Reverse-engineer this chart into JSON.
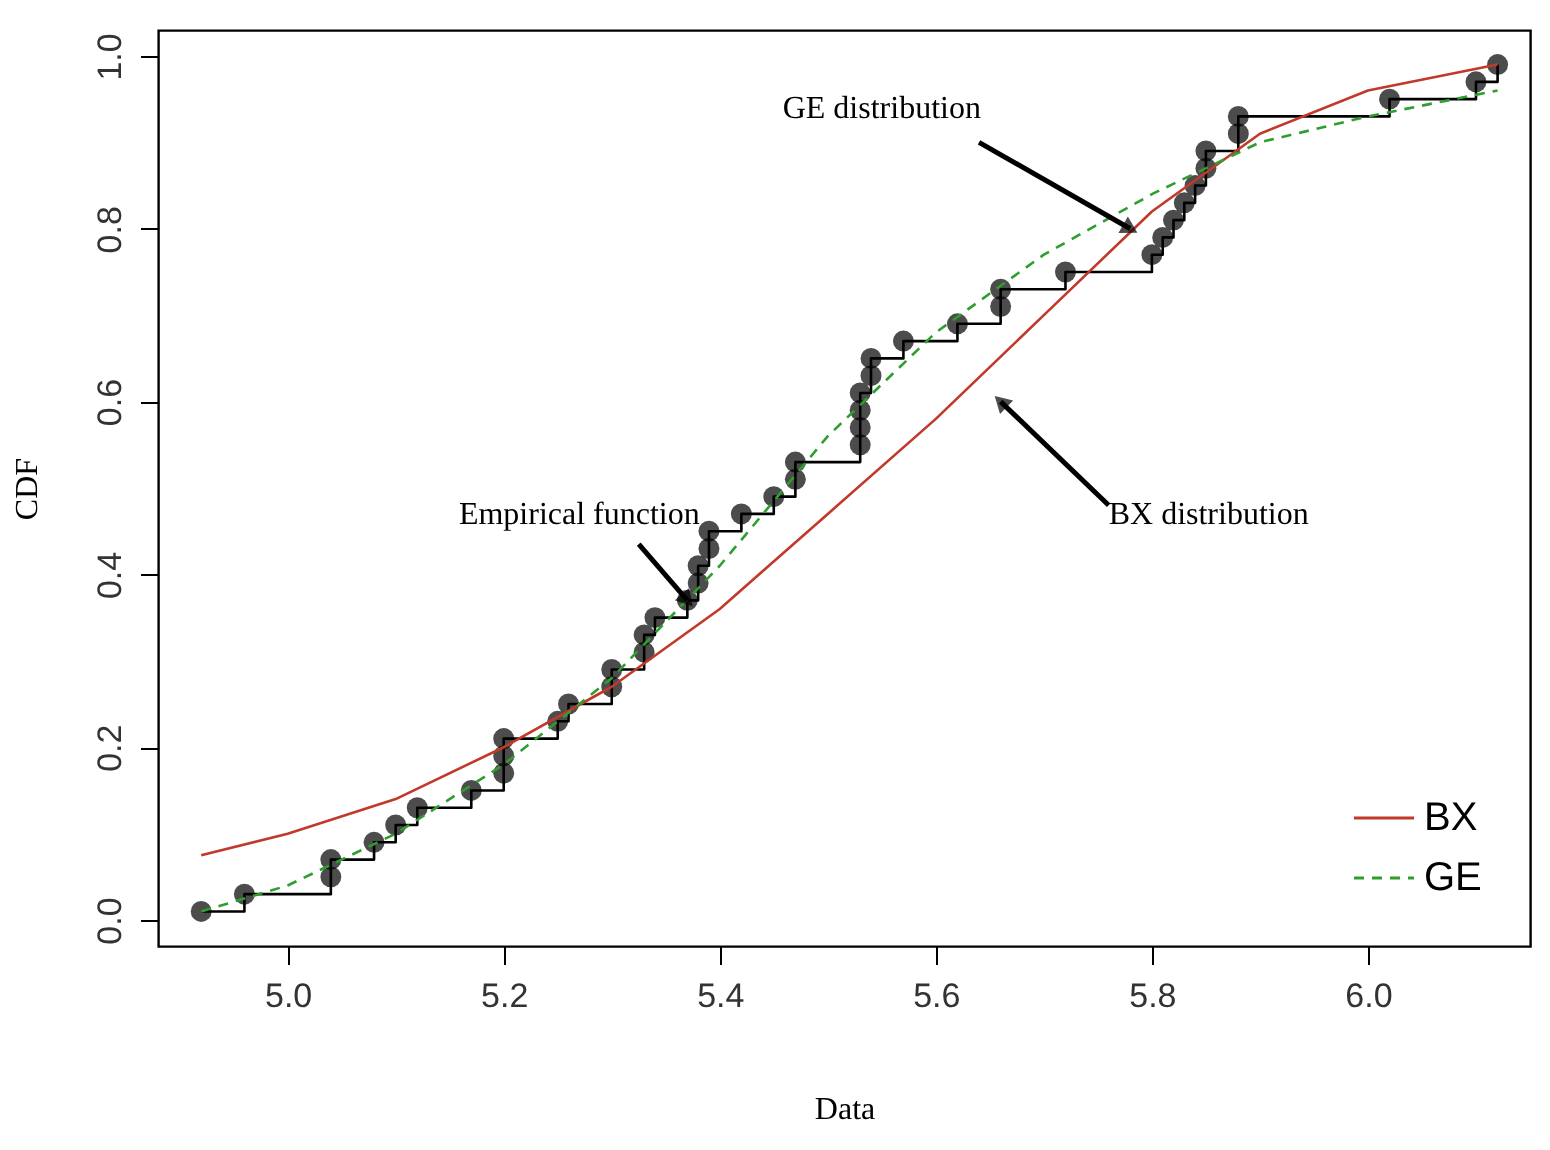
{
  "chart_data": {
    "type": "line",
    "xlabel": "Data",
    "ylabel": "CDF",
    "xlim": [
      4.88,
      6.15
    ],
    "ylim": [
      -0.03,
      1.03
    ],
    "xticks": [
      {
        "value": 5,
        "label": "5.0"
      },
      5.2,
      5.4,
      5.6,
      5.8,
      {
        "value": 6,
        "label": "6.0"
      }
    ],
    "yticks": [
      {
        "value": 0,
        "label": "0.0"
      },
      0.2,
      0.4,
      0.6,
      0.8,
      {
        "value": 1,
        "label": "1.0"
      }
    ],
    "grid": false,
    "legend": "bottom right",
    "series": [
      {
        "type": "step",
        "color": "#000000",
        "marker": "circle",
        "line_style": "solid",
        "x": [
          4.92,
          4.96,
          5.04,
          5.04,
          5.08,
          5.1,
          5.12,
          5.17,
          5.2,
          5.2,
          5.2,
          5.25,
          5.26,
          5.3,
          5.3,
          5.33,
          5.33,
          5.34,
          5.37,
          5.38,
          5.38,
          5.39,
          5.39,
          5.42,
          5.45,
          5.47,
          5.47,
          5.53,
          5.53,
          5.53,
          5.53,
          5.54,
          5.54,
          5.57,
          5.62,
          5.66,
          5.66,
          5.72,
          5.8,
          5.81,
          5.82,
          5.83,
          5.84,
          5.85,
          5.85,
          5.88,
          5.88,
          6.02,
          6.1,
          6.12
        ],
        "values": [
          0.01,
          0.03,
          0.05,
          0.07,
          0.09,
          0.11,
          0.13,
          0.15,
          0.17,
          0.19,
          0.21,
          0.23,
          0.25,
          0.27,
          0.29,
          0.31,
          0.33,
          0.35,
          0.37,
          0.39,
          0.41,
          0.43,
          0.45,
          0.47,
          0.49,
          0.51,
          0.53,
          0.55,
          0.57,
          0.59,
          0.61,
          0.63,
          0.65,
          0.67,
          0.69,
          0.71,
          0.73,
          0.75,
          0.77,
          0.79,
          0.81,
          0.83,
          0.85,
          0.87,
          0.89,
          0.91,
          0.93,
          0.95,
          0.97,
          0.99
        ]
      },
      {
        "name": "BX",
        "color": "#c0392b",
        "line_style": "solid",
        "marker": "none",
        "x": [
          4.92,
          5.0,
          5.1,
          5.2,
          5.3,
          5.4,
          5.5,
          5.6,
          5.7,
          5.8,
          5.9,
          6.0,
          6.12
        ],
        "values": [
          0.075,
          0.1,
          0.14,
          0.2,
          0.27,
          0.36,
          0.47,
          0.58,
          0.7,
          0.82,
          0.91,
          0.96,
          0.99
        ]
      },
      {
        "name": "GE",
        "color": "#2e9e2e",
        "line_style": "dashed",
        "marker": "none",
        "x": [
          4.92,
          5.0,
          5.1,
          5.2,
          5.3,
          5.4,
          5.5,
          5.6,
          5.7,
          5.8,
          5.9,
          6.0,
          6.12
        ],
        "values": [
          0.01,
          0.04,
          0.1,
          0.18,
          0.28,
          0.41,
          0.56,
          0.68,
          0.77,
          0.84,
          0.9,
          0.93,
          0.96
        ]
      }
    ],
    "annotations": [
      {
        "text": "Empirical function",
        "x": 5.37,
        "y": 0.37
      },
      {
        "text": "GE distribution",
        "x": 5.78,
        "y": 0.8
      },
      {
        "text": "BX distribution",
        "x": 5.66,
        "y": 0.6
      }
    ]
  }
}
